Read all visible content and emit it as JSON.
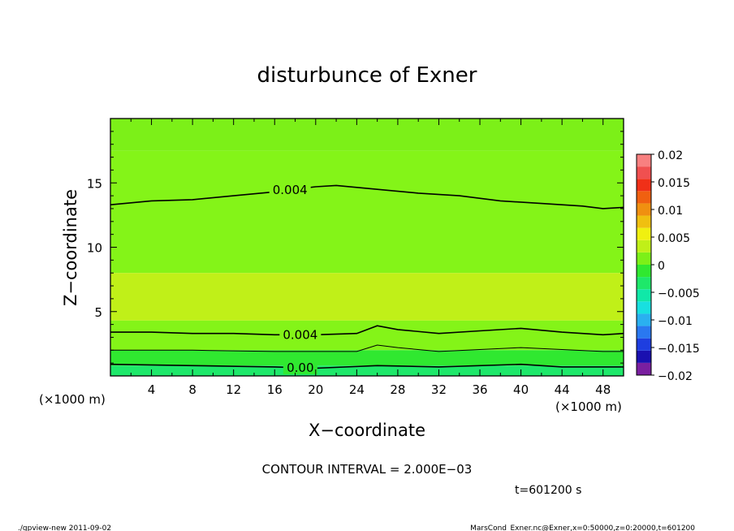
{
  "chart_data": {
    "type": "heatmap",
    "title": "disturbunce of Exner",
    "xlabel": "X−coordinate",
    "ylabel": "Z−coordinate",
    "x_unit": "(×1000 m)",
    "y_unit": "(×1000 m)",
    "xlim": [
      0,
      50
    ],
    "ylim": [
      0,
      20
    ],
    "x_ticks": [
      4,
      8,
      12,
      16,
      20,
      24,
      28,
      32,
      36,
      40,
      44,
      48
    ],
    "y_ticks": [
      5,
      10,
      15
    ],
    "contour_interval_text": "CONTOUR INTERVAL = 2.000E−03",
    "time_text": "t=601200 s",
    "colorbar": {
      "levels": [
        0.02,
        0.015,
        0.01,
        0.005,
        0,
        -0.005,
        -0.01,
        -0.015,
        -0.02
      ],
      "labels": [
        "0.02",
        "0.015",
        "0.01",
        "0.005",
        "0",
        "−0.005",
        "−0.01",
        "−0.015",
        "−0.02"
      ],
      "colors_bottom_to_top": [
        "#7a1fa0",
        "#1a10b0",
        "#1e3ee0",
        "#2a78f0",
        "#2ab0f0",
        "#18e0e0",
        "#10e8a8",
        "#1ee86a",
        "#30e830",
        "#7cf018",
        "#c0f018",
        "#f0f010",
        "#f0c010",
        "#f09010",
        "#f06010",
        "#f03018",
        "#f05050",
        "#f88080"
      ]
    },
    "contour_lines": [
      {
        "label": "0.004",
        "z_profile": [
          [
            0,
            13.3
          ],
          [
            4,
            13.6
          ],
          [
            8,
            13.7
          ],
          [
            12,
            14.0
          ],
          [
            16,
            14.3
          ],
          [
            20,
            14.7
          ],
          [
            22,
            14.8
          ],
          [
            26,
            14.5
          ],
          [
            30,
            14.2
          ],
          [
            34,
            14.0
          ],
          [
            38,
            13.6
          ],
          [
            42,
            13.4
          ],
          [
            46,
            13.2
          ],
          [
            48,
            13.0
          ],
          [
            50,
            13.1
          ]
        ]
      },
      {
        "label": "0.004",
        "z_profile": [
          [
            0,
            3.4
          ],
          [
            4,
            3.4
          ],
          [
            8,
            3.3
          ],
          [
            12,
            3.3
          ],
          [
            16,
            3.2
          ],
          [
            20,
            3.2
          ],
          [
            24,
            3.3
          ],
          [
            26,
            3.9
          ],
          [
            28,
            3.6
          ],
          [
            32,
            3.3
          ],
          [
            36,
            3.5
          ],
          [
            40,
            3.7
          ],
          [
            44,
            3.4
          ],
          [
            48,
            3.2
          ],
          [
            50,
            3.3
          ]
        ]
      },
      {
        "label": "",
        "z_profile": [
          [
            0,
            2.0
          ],
          [
            8,
            2.0
          ],
          [
            16,
            1.9
          ],
          [
            24,
            1.9
          ],
          [
            26,
            2.4
          ],
          [
            28,
            2.2
          ],
          [
            32,
            1.9
          ],
          [
            40,
            2.2
          ],
          [
            48,
            1.9
          ],
          [
            50,
            1.9
          ]
        ]
      },
      {
        "label": "0.00",
        "z_profile": [
          [
            0,
            0.9
          ],
          [
            8,
            0.8
          ],
          [
            16,
            0.7
          ],
          [
            20,
            0.6
          ],
          [
            26,
            0.8
          ],
          [
            32,
            0.7
          ],
          [
            40,
            0.9
          ],
          [
            44,
            0.7
          ],
          [
            50,
            0.7
          ]
        ]
      }
    ],
    "field_bands": [
      {
        "z_from": 17.5,
        "z_to": 20,
        "color": "#7cf018"
      },
      {
        "z_from": 8.0,
        "z_to": 17.5,
        "color": "#84f418"
      },
      {
        "z_from": 4.3,
        "z_to": 8.0,
        "color": "#c0f018"
      },
      {
        "z_from": 2.0,
        "z_to": 4.3,
        "color": "#84f418"
      },
      {
        "z_from": 0.8,
        "z_to": 2.0,
        "color": "#30e830"
      },
      {
        "z_from": 0.0,
        "z_to": 0.8,
        "color": "#1ee86a"
      }
    ],
    "grid": false
  },
  "footer": {
    "left": "./gpview-new   2011-09-02",
    "right": "MarsCond_Exner.nc@Exner,x=0:50000,z=0:20000,t=601200"
  }
}
